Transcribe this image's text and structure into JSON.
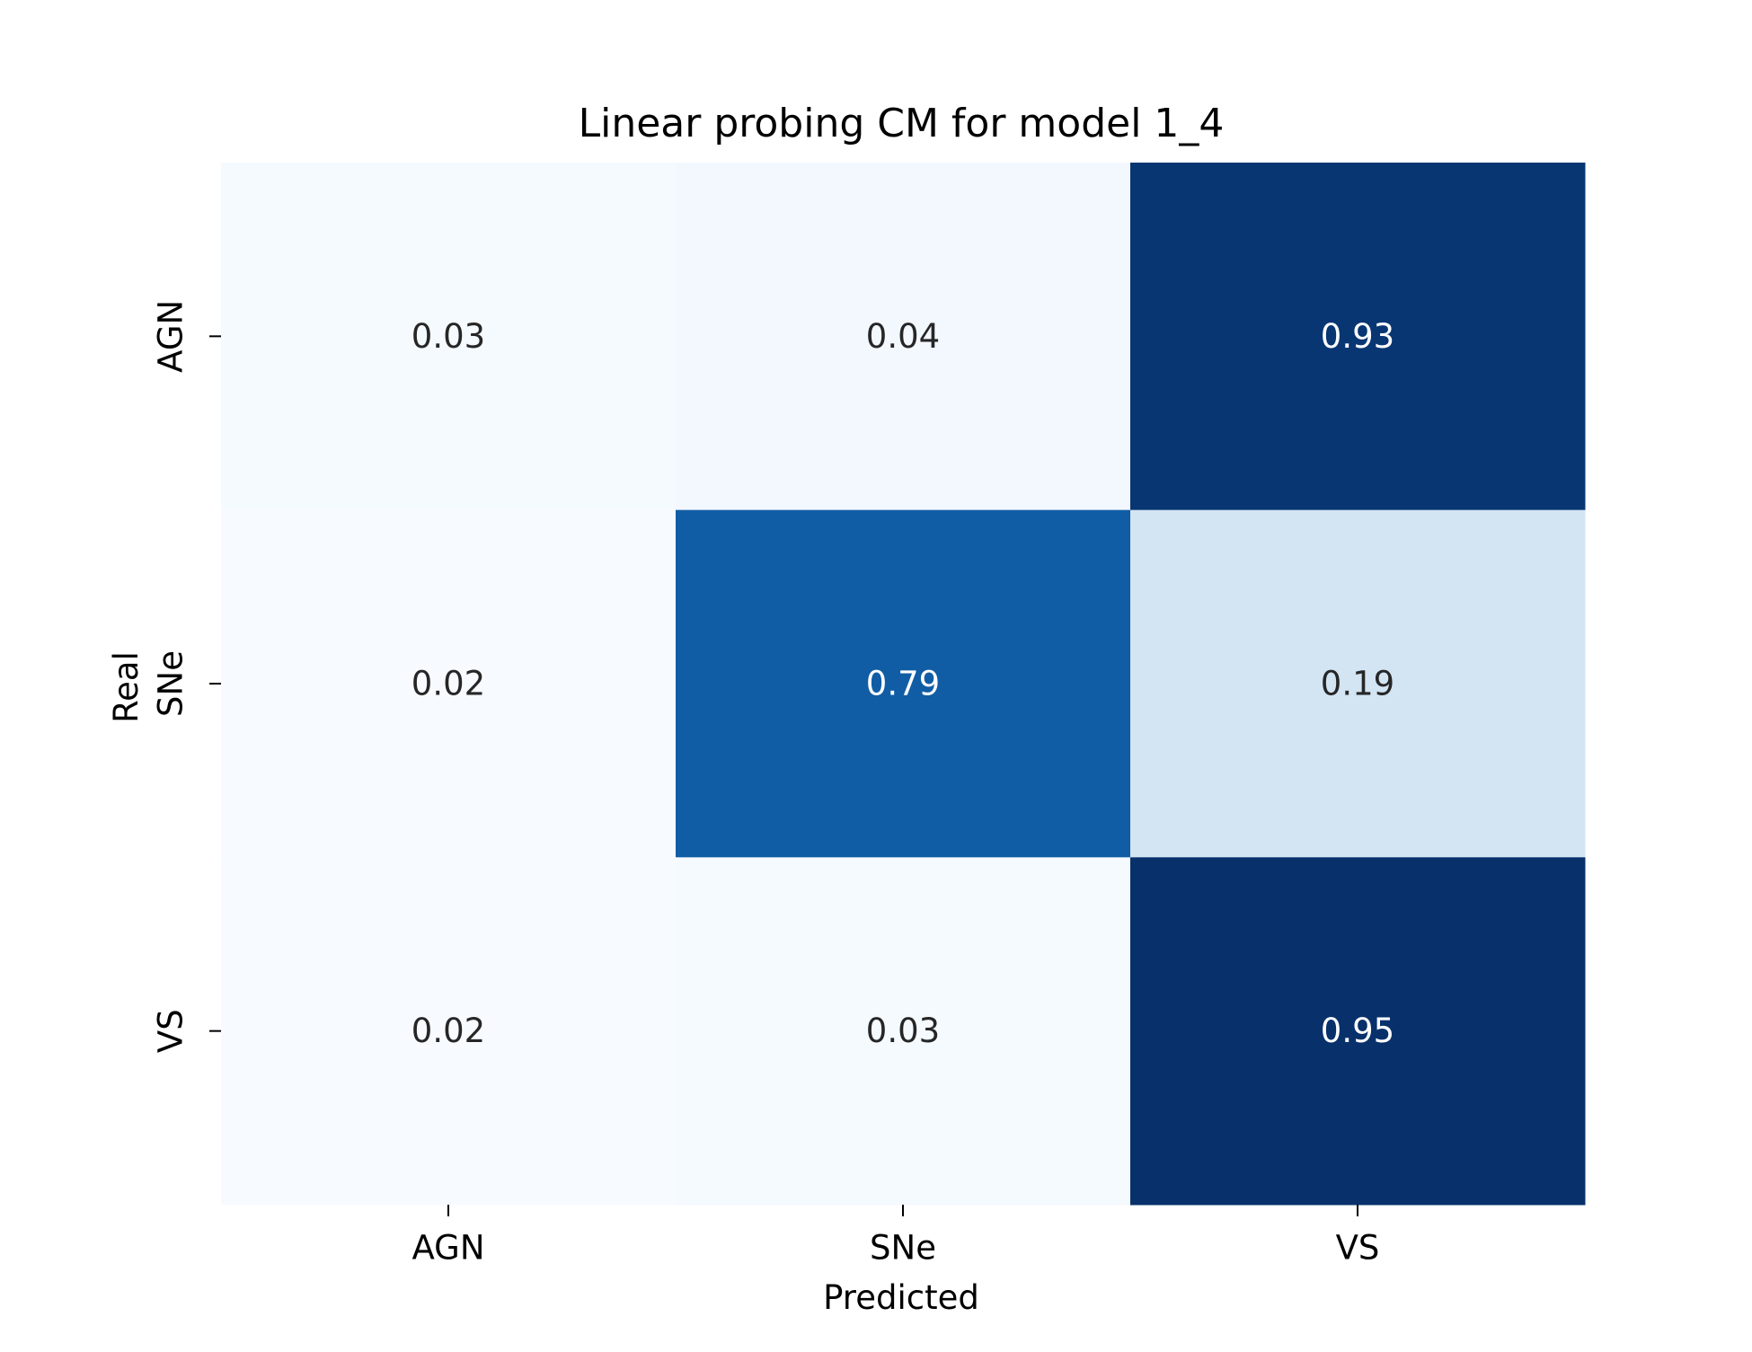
{
  "chart_data": {
    "type": "heatmap",
    "title": "Linear probing CM for model 1_4",
    "xlabel": "Predicted",
    "ylabel": "Real",
    "x_categories": [
      "AGN",
      "SNe",
      "VS"
    ],
    "y_categories": [
      "AGN",
      "SNe",
      "VS"
    ],
    "values": [
      [
        0.03,
        0.04,
        0.93
      ],
      [
        0.02,
        0.79,
        0.19
      ],
      [
        0.02,
        0.03,
        0.95
      ]
    ],
    "value_labels": [
      [
        "0.03",
        "0.04",
        "0.93"
      ],
      [
        "0.02",
        "0.79",
        "0.19"
      ],
      [
        "0.02",
        "0.03",
        "0.95"
      ]
    ],
    "colormap": "Blues",
    "color_range": [
      0.02,
      0.95
    ],
    "colorbar": false,
    "grid": false
  }
}
